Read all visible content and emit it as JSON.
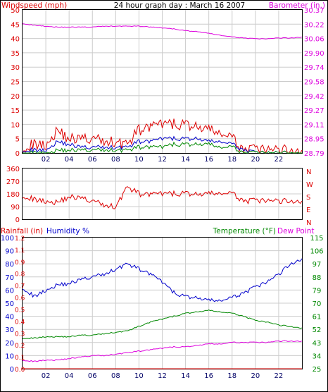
{
  "header": {
    "title": "24 hour graph day : March 16 2007",
    "left_label": "Windspeed (mph)",
    "right_label": "Barometer (in.)"
  },
  "colors": {
    "windspeed": "#dd0000",
    "wind_avg": "#0000cc",
    "wind_green": "#008800",
    "barometer": "#dd00dd",
    "humidity": "#0000cc",
    "temperature": "#008800",
    "dewpoint": "#dd00dd",
    "rainfall": "#dd0000",
    "grid": "#cccccc",
    "frame": "#000000"
  },
  "chart_data": [
    {
      "type": "line",
      "x": [
        "00:00",
        "01:00",
        "02:00",
        "03:00",
        "04:00",
        "05:00",
        "06:00",
        "07:00",
        "08:00",
        "09:00",
        "10:00",
        "11:00",
        "12:00",
        "13:00",
        "14:00",
        "15:00",
        "16:00",
        "17:00",
        "18:00",
        "19:00",
        "20:00",
        "21:00",
        "22:00",
        "23:00",
        "24:00"
      ],
      "xticks": [
        "02",
        "04",
        "06",
        "08",
        "10",
        "12",
        "14",
        "16",
        "18",
        "20",
        "22"
      ],
      "left_axis": {
        "label": "Windspeed (mph)",
        "ticks": [
          "0",
          "5",
          "10",
          "15",
          "20",
          "25",
          "30",
          "35",
          "40",
          "45",
          "50"
        ],
        "ylim": [
          0,
          50
        ]
      },
      "right_axis": {
        "label": "Barometer (in.)",
        "ticks": [
          "28.79",
          "28.95",
          "29.11",
          "29.27",
          "29.42",
          "29.58",
          "29.74",
          "29.90",
          "30.06",
          "30.22",
          "30.37"
        ],
        "ylim": [
          28.79,
          30.37
        ]
      },
      "series": [
        {
          "name": "Windspeed",
          "axis": "left",
          "color_key": "windspeed",
          "values": [
            2,
            3,
            3,
            8,
            5,
            5,
            5,
            4,
            4,
            3,
            8,
            9,
            10,
            10,
            10,
            9,
            8,
            7,
            5,
            1,
            1,
            1,
            1,
            1,
            1
          ]
        },
        {
          "name": "Wind avg",
          "axis": "left",
          "color_key": "wind_avg",
          "values": [
            1,
            1,
            1,
            4,
            3,
            2,
            2,
            2,
            2,
            2,
            4,
            4,
            5,
            5,
            5,
            5,
            4,
            4,
            3,
            1,
            0,
            0,
            0,
            0,
            0
          ]
        },
        {
          "name": "Wind min",
          "axis": "left",
          "color_key": "wind_green",
          "values": [
            0,
            0,
            0,
            1,
            1,
            1,
            1,
            1,
            1,
            1,
            2,
            2,
            2,
            3,
            3,
            3,
            3,
            2,
            2,
            0,
            0,
            0,
            0,
            0,
            0
          ]
        },
        {
          "name": "Barometer",
          "axis": "right",
          "color_key": "barometer",
          "values": [
            30.22,
            30.2,
            30.19,
            30.18,
            30.18,
            30.18,
            30.18,
            30.19,
            30.19,
            30.19,
            30.19,
            30.18,
            30.17,
            30.16,
            30.14,
            30.13,
            30.11,
            30.09,
            30.07,
            30.06,
            30.05,
            30.05,
            30.06,
            30.06,
            30.07
          ]
        }
      ]
    },
    {
      "type": "line",
      "x": [
        "00:00",
        "01:00",
        "02:00",
        "03:00",
        "04:00",
        "05:00",
        "06:00",
        "07:00",
        "08:00",
        "09:00",
        "10:00",
        "11:00",
        "12:00",
        "13:00",
        "14:00",
        "15:00",
        "16:00",
        "17:00",
        "18:00",
        "19:00",
        "20:00",
        "21:00",
        "22:00",
        "23:00",
        "24:00"
      ],
      "left_axis": {
        "ticks": [
          "0",
          "90",
          "180",
          "270",
          "360"
        ],
        "ylim": [
          0,
          360
        ]
      },
      "right_axis": {
        "ticks": [
          "N",
          "E",
          "S",
          "W",
          "N"
        ]
      },
      "series": [
        {
          "name": "Wind direction",
          "axis": "left",
          "color_key": "windspeed",
          "values": [
            170,
            140,
            130,
            120,
            160,
            150,
            130,
            100,
            90,
            230,
            180,
            175,
            180,
            180,
            185,
            175,
            180,
            185,
            180,
            130,
            130,
            130,
            130,
            130,
            130
          ]
        }
      ]
    },
    {
      "type": "line",
      "x": [
        "00:00",
        "01:00",
        "02:00",
        "03:00",
        "04:00",
        "05:00",
        "06:00",
        "07:00",
        "08:00",
        "09:00",
        "10:00",
        "11:00",
        "12:00",
        "13:00",
        "14:00",
        "15:00",
        "16:00",
        "17:00",
        "18:00",
        "19:00",
        "20:00",
        "21:00",
        "22:00",
        "23:00",
        "24:00"
      ],
      "xticks": [
        "02",
        "04",
        "06",
        "08",
        "10",
        "12",
        "14",
        "16",
        "18",
        "20",
        "22"
      ],
      "rain_axis": {
        "label": "Rainfall (in)",
        "ticks": [
          "0.0",
          "0.1",
          "0.2",
          "0.3",
          "0.4",
          "0.5",
          "0.6",
          "0.7",
          "0.8",
          "0.9",
          "1.1",
          "1.2"
        ],
        "ylim": [
          0,
          1.2
        ]
      },
      "humidity_axis": {
        "label": "Humidity %",
        "ticks": [
          "0",
          "10",
          "20",
          "30",
          "40",
          "50",
          "60",
          "70",
          "80",
          "90",
          "100"
        ],
        "ylim": [
          0,
          100
        ]
      },
      "temp_axis": {
        "label": "Temperature (°F)",
        "ticks": [
          "25",
          "34",
          "43",
          "52",
          "61",
          "70",
          "79",
          "88",
          "97",
          "106",
          "115"
        ],
        "ylim": [
          25,
          115
        ]
      },
      "dewpoint_label": "Dew Point",
      "series": [
        {
          "name": "Humidity",
          "axis": "humidity",
          "color_key": "humidity",
          "values": [
            62,
            55,
            60,
            64,
            65,
            68,
            70,
            72,
            76,
            80,
            76,
            72,
            66,
            58,
            55,
            54,
            52,
            52,
            54,
            58,
            62,
            66,
            72,
            80,
            84
          ]
        },
        {
          "name": "Temperature",
          "axis": "temperature",
          "color_key": "temperature",
          "values": [
            46,
            46,
            47,
            47,
            47,
            48,
            48,
            49,
            50,
            51,
            54,
            57,
            59,
            61,
            63,
            64,
            65,
            64,
            63,
            61,
            58,
            57,
            55,
            54,
            53
          ]
        },
        {
          "name": "Dew Point",
          "axis": "temperature",
          "color_key": "dewpoint",
          "values": [
            31,
            30,
            31,
            31,
            32,
            33,
            34,
            34,
            35,
            36,
            37,
            38,
            39,
            40,
            40,
            41,
            42,
            42,
            43,
            43,
            43,
            43,
            44,
            44,
            44
          ]
        },
        {
          "name": "Rainfall",
          "axis": "rain",
          "color_key": "rainfall",
          "values": [
            0,
            0,
            0,
            0,
            0,
            0,
            0,
            0,
            0,
            0,
            0,
            0,
            0,
            0,
            0,
            0,
            0,
            0,
            0,
            0,
            0,
            0,
            0,
            0,
            0
          ]
        }
      ]
    }
  ]
}
